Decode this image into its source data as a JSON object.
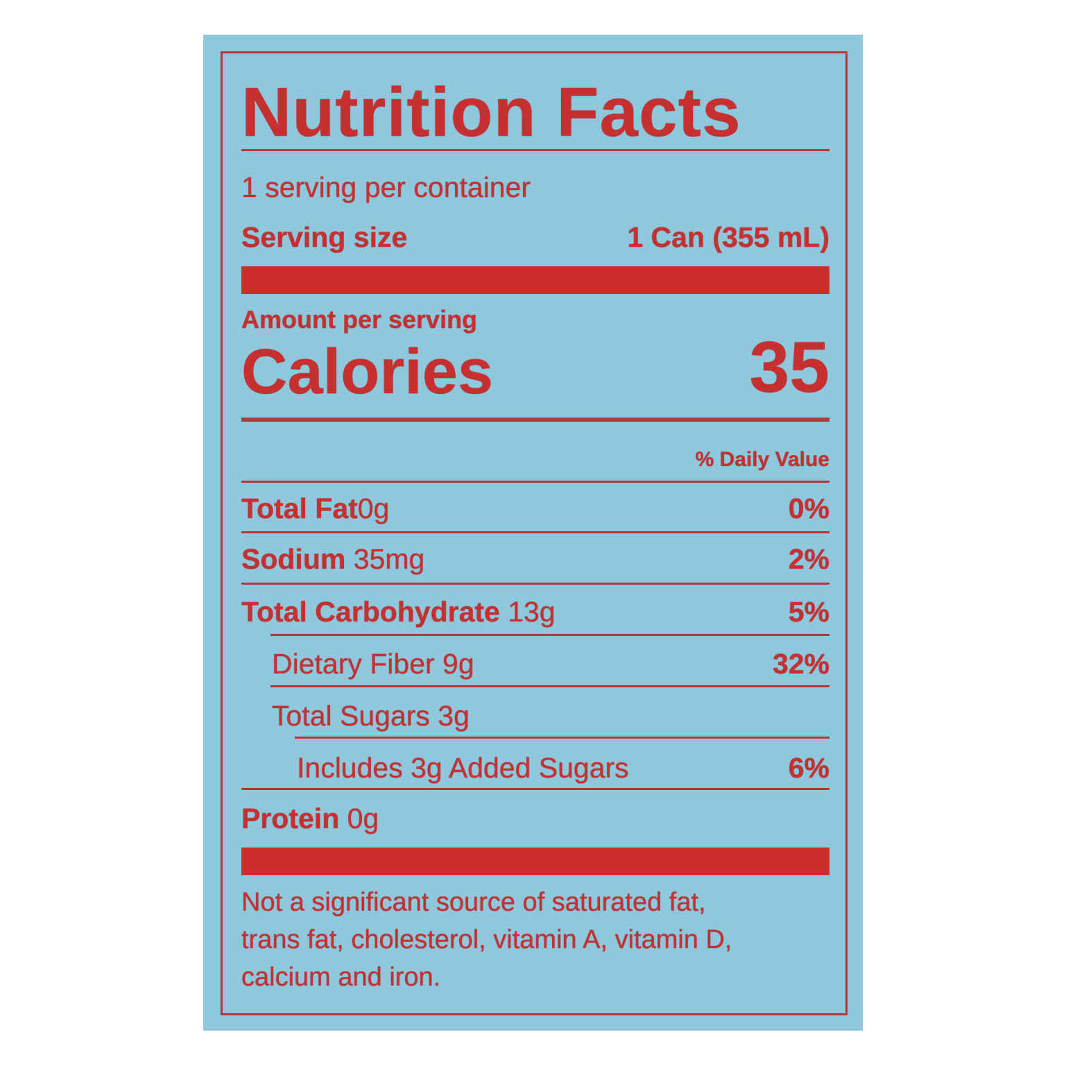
{
  "label": {
    "title": "Nutrition Facts",
    "servings_per_container": "1 serving per container",
    "serving_size_label": "Serving size",
    "serving_size_value": "1 Can (355 mL)",
    "amount_per_serving": "Amount per serving",
    "calories_label": "Calories",
    "calories_value": "35",
    "daily_value_header": "% Daily Value",
    "nutrients": [
      {
        "name": "Total Fat",
        "amount": "0g",
        "dv": "0%"
      },
      {
        "name": "Sodium",
        "amount": "35mg",
        "dv": "2%"
      },
      {
        "name": "Total Carbohydrate",
        "amount": "13g",
        "dv": "5%"
      },
      {
        "name": "Dietary Fiber 9g",
        "amount": "",
        "dv": "32%"
      },
      {
        "name": "Total Sugars 3g",
        "amount": "",
        "dv": ""
      },
      {
        "name": "Includes 3g Added Sugars",
        "amount": "",
        "dv": "6%"
      },
      {
        "name": "Protein",
        "amount": "0g",
        "dv": ""
      }
    ],
    "footnote": [
      "Not a significant source of saturated fat,",
      "trans fat, cholesterol, vitamin A, vitamin D,",
      "calcium and iron."
    ]
  },
  "colors": {
    "background": "#8fc8dc",
    "ink": "#c8302f"
  }
}
